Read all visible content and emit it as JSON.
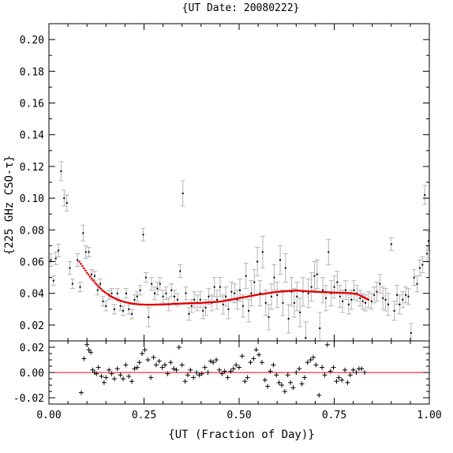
{
  "chart_data": [
    {
      "type": "scatter",
      "title": "{UT Date: 20080222}",
      "xlabel": "{UT (Fraction of Day)}",
      "ylabel": "{225 GHz CSO-τ}",
      "xlim": [
        0.0,
        1.0
      ],
      "ylim": [
        0.01,
        0.21
      ],
      "xticks": [
        "0.00",
        "0.25",
        "0.50",
        "0.75",
        "1.00"
      ],
      "yticks": [
        "0.02",
        "0.04",
        "0.06",
        "0.08",
        "0.10",
        "0.12",
        "0.14",
        "0.16",
        "0.18",
        "0.20"
      ],
      "grid": false,
      "series": [
        {
          "kind": "measurements",
          "color": "#000000",
          "errorbar_color": "#b4b4b4",
          "points": [
            [
              0.005,
              0.061,
              0.004
            ],
            [
              0.012,
              0.048,
              0.003
            ],
            [
              0.018,
              0.062,
              0.004
            ],
            [
              0.025,
              0.067,
              0.004
            ],
            [
              0.032,
              0.117,
              0.006
            ],
            [
              0.04,
              0.1,
              0.005
            ],
            [
              0.047,
              0.097,
              0.005
            ],
            [
              0.055,
              0.056,
              0.004
            ],
            [
              0.062,
              0.046,
              0.003
            ],
            [
              0.075,
              0.061,
              0.004
            ],
            [
              0.082,
              0.044,
              0.003
            ],
            [
              0.09,
              0.078,
              0.005
            ],
            [
              0.097,
              0.066,
              0.004
            ],
            [
              0.105,
              0.066,
              0.003
            ],
            [
              0.112,
              0.052,
              0.003
            ],
            [
              0.12,
              0.051,
              0.003
            ],
            [
              0.128,
              0.042,
              0.003
            ],
            [
              0.135,
              0.046,
              0.003
            ],
            [
              0.142,
              0.035,
              0.003
            ],
            [
              0.15,
              0.032,
              0.003
            ],
            [
              0.158,
              0.039,
              0.003
            ],
            [
              0.165,
              0.04,
              0.003
            ],
            [
              0.172,
              0.03,
              0.003
            ],
            [
              0.18,
              0.04,
              0.003
            ],
            [
              0.188,
              0.032,
              0.003
            ],
            [
              0.195,
              0.029,
              0.003
            ],
            [
              0.203,
              0.04,
              0.003
            ],
            [
              0.21,
              0.03,
              0.003
            ],
            [
              0.218,
              0.027,
              0.003
            ],
            [
              0.225,
              0.036,
              0.003
            ],
            [
              0.232,
              0.038,
              0.003
            ],
            [
              0.24,
              0.042,
              0.003
            ],
            [
              0.248,
              0.077,
              0.004
            ],
            [
              0.255,
              0.05,
              0.003
            ],
            [
              0.262,
              0.025,
              0.006
            ],
            [
              0.27,
              0.046,
              0.004
            ],
            [
              0.278,
              0.04,
              0.004
            ],
            [
              0.285,
              0.043,
              0.004
            ],
            [
              0.292,
              0.046,
              0.004
            ],
            [
              0.3,
              0.038,
              0.004
            ],
            [
              0.308,
              0.04,
              0.004
            ],
            [
              0.315,
              0.033,
              0.004
            ],
            [
              0.322,
              0.042,
              0.004
            ],
            [
              0.33,
              0.038,
              0.004
            ],
            [
              0.338,
              0.036,
              0.004
            ],
            [
              0.345,
              0.054,
              0.004
            ],
            [
              0.352,
              0.103,
              0.008
            ],
            [
              0.36,
              0.04,
              0.004
            ],
            [
              0.368,
              0.027,
              0.004
            ],
            [
              0.375,
              0.032,
              0.004
            ],
            [
              0.382,
              0.036,
              0.005
            ],
            [
              0.39,
              0.034,
              0.005
            ],
            [
              0.398,
              0.036,
              0.005
            ],
            [
              0.405,
              0.029,
              0.005
            ],
            [
              0.412,
              0.031,
              0.005
            ],
            [
              0.42,
              0.038,
              0.005
            ],
            [
              0.428,
              0.034,
              0.005
            ],
            [
              0.435,
              0.044,
              0.006
            ],
            [
              0.442,
              0.036,
              0.006
            ],
            [
              0.45,
              0.044,
              0.006
            ],
            [
              0.458,
              0.033,
              0.006
            ],
            [
              0.465,
              0.038,
              0.006
            ],
            [
              0.472,
              0.03,
              0.006
            ],
            [
              0.48,
              0.041,
              0.006
            ],
            [
              0.488,
              0.04,
              0.006
            ],
            [
              0.495,
              0.036,
              0.006
            ],
            [
              0.502,
              0.042,
              0.007
            ],
            [
              0.51,
              0.032,
              0.007
            ],
            [
              0.518,
              0.051,
              0.008
            ],
            [
              0.525,
              0.029,
              0.007
            ],
            [
              0.532,
              0.04,
              0.008
            ],
            [
              0.54,
              0.047,
              0.008
            ],
            [
              0.548,
              0.06,
              0.009
            ],
            [
              0.555,
              0.04,
              0.008
            ],
            [
              0.562,
              0.066,
              0.01
            ],
            [
              0.57,
              0.034,
              0.008
            ],
            [
              0.578,
              0.025,
              0.008
            ],
            [
              0.585,
              0.038,
              0.008
            ],
            [
              0.592,
              0.05,
              0.008
            ],
            [
              0.6,
              0.039,
              0.008
            ],
            [
              0.608,
              0.061,
              0.009
            ],
            [
              0.615,
              0.034,
              0.008
            ],
            [
              0.622,
              0.056,
              0.009
            ],
            [
              0.63,
              0.024,
              0.009
            ],
            [
              0.638,
              0.041,
              0.009
            ],
            [
              0.645,
              0.034,
              0.009
            ],
            [
              0.652,
              0.038,
              0.009
            ],
            [
              0.66,
              0.028,
              0.009
            ],
            [
              0.668,
              0.041,
              0.009
            ],
            [
              0.675,
              0.012,
              0.01
            ],
            [
              0.682,
              0.04,
              0.009
            ],
            [
              0.69,
              0.044,
              0.009
            ],
            [
              0.698,
              0.051,
              0.009
            ],
            [
              0.705,
              0.052,
              0.009
            ],
            [
              0.712,
              0.018,
              0.01
            ],
            [
              0.72,
              0.042,
              0.008
            ],
            [
              0.728,
              0.037,
              0.008
            ],
            [
              0.735,
              0.066,
              0.008
            ],
            [
              0.742,
              0.04,
              0.008
            ],
            [
              0.75,
              0.044,
              0.007
            ],
            [
              0.758,
              0.047,
              0.007
            ],
            [
              0.765,
              0.038,
              0.007
            ],
            [
              0.772,
              0.035,
              0.007
            ],
            [
              0.78,
              0.042,
              0.006
            ],
            [
              0.788,
              0.033,
              0.006
            ],
            [
              0.795,
              0.036,
              0.006
            ],
            [
              0.802,
              0.042,
              0.006
            ],
            [
              0.81,
              0.04,
              0.005
            ],
            [
              0.818,
              0.037,
              0.005
            ],
            [
              0.825,
              0.035,
              0.005
            ],
            [
              0.832,
              0.034,
              0.005
            ],
            [
              0.84,
              0.036,
              0.005
            ],
            [
              0.848,
              0.035,
              0.005
            ],
            [
              0.855,
              0.039,
              0.005
            ],
            [
              0.862,
              0.041,
              0.006
            ],
            [
              0.87,
              0.046,
              0.006
            ],
            [
              0.878,
              0.037,
              0.007
            ],
            [
              0.885,
              0.036,
              0.007
            ],
            [
              0.892,
              0.033,
              0.007
            ],
            [
              0.9,
              0.071,
              0.004
            ],
            [
              0.908,
              0.029,
              0.006
            ],
            [
              0.915,
              0.039,
              0.006
            ],
            [
              0.922,
              0.033,
              0.006
            ],
            [
              0.93,
              0.036,
              0.005
            ],
            [
              0.938,
              0.039,
              0.005
            ],
            [
              0.945,
              0.038,
              0.005
            ],
            [
              0.952,
              0.015,
              0.006
            ],
            [
              0.96,
              0.05,
              0.005
            ],
            [
              0.968,
              0.046,
              0.005
            ],
            [
              0.975,
              0.056,
              0.005
            ],
            [
              0.982,
              0.058,
              0.005
            ],
            [
              0.988,
              0.102,
              0.006
            ],
            [
              0.994,
              0.065,
              0.005
            ],
            [
              0.998,
              0.073,
              0.006
            ]
          ]
        },
        {
          "kind": "fit",
          "color": "#e00000",
          "x": [
            0.08,
            0.1,
            0.12,
            0.14,
            0.16,
            0.18,
            0.2,
            0.22,
            0.24,
            0.26,
            0.3,
            0.35,
            0.4,
            0.45,
            0.5,
            0.55,
            0.6,
            0.65,
            0.7,
            0.75,
            0.79,
            0.81,
            0.82,
            0.83,
            0.84
          ],
          "y": [
            0.06,
            0.053,
            0.047,
            0.042,
            0.0385,
            0.036,
            0.0345,
            0.0335,
            0.033,
            0.0328,
            0.033,
            0.0336,
            0.034,
            0.0348,
            0.037,
            0.0392,
            0.041,
            0.0418,
            0.041,
            0.0405,
            0.0402,
            0.0395,
            0.0385,
            0.0372,
            0.036
          ]
        }
      ]
    },
    {
      "type": "scatter",
      "panel": "residuals",
      "xlim": [
        0.0,
        1.0
      ],
      "ylim": [
        -0.025,
        0.025
      ],
      "xticks": [
        "0.00",
        "0.25",
        "0.50",
        "0.75",
        "1.00"
      ],
      "yticks": [
        "-0.02",
        "0.00",
        "0.02"
      ],
      "zero_line_color": "#e00000",
      "marker": "+",
      "points": [
        [
          0.085,
          -0.016
        ],
        [
          0.092,
          0.011
        ],
        [
          0.1,
          0.022
        ],
        [
          0.105,
          0.018
        ],
        [
          0.11,
          0.016
        ],
        [
          0.115,
          0.002
        ],
        [
          0.12,
          0.0
        ],
        [
          0.125,
          -0.001
        ],
        [
          0.13,
          0.004
        ],
        [
          0.138,
          -0.003
        ],
        [
          0.145,
          -0.008
        ],
        [
          0.15,
          -0.004
        ],
        [
          0.158,
          0.002
        ],
        [
          0.165,
          -0.001
        ],
        [
          0.172,
          -0.005
        ],
        [
          0.18,
          0.003
        ],
        [
          0.188,
          -0.002
        ],
        [
          0.195,
          -0.005
        ],
        [
          0.202,
          0.006
        ],
        [
          0.21,
          -0.003
        ],
        [
          0.218,
          -0.007
        ],
        [
          0.225,
          0.003
        ],
        [
          0.232,
          0.004
        ],
        [
          0.238,
          0.008
        ],
        [
          0.245,
          0.015
        ],
        [
          0.252,
          0.018
        ],
        [
          0.26,
          0.01
        ],
        [
          0.268,
          -0.004
        ],
        [
          0.275,
          0.012
        ],
        [
          0.282,
          0.006
        ],
        [
          0.29,
          0.009
        ],
        [
          0.298,
          0.004
        ],
        [
          0.305,
          0.006
        ],
        [
          0.312,
          -0.001
        ],
        [
          0.32,
          0.008
        ],
        [
          0.328,
          0.003
        ],
        [
          0.335,
          0.002
        ],
        [
          0.342,
          0.02
        ],
        [
          0.35,
          0.006
        ],
        [
          0.358,
          -0.007
        ],
        [
          0.365,
          -0.002
        ],
        [
          0.372,
          0.002
        ],
        [
          0.38,
          -0.004
        ],
        [
          0.388,
          0.0
        ],
        [
          0.395,
          -0.002
        ],
        [
          0.402,
          -0.001
        ],
        [
          0.41,
          0.004
        ],
        [
          0.418,
          0.0
        ],
        [
          0.425,
          0.009
        ],
        [
          0.432,
          0.008
        ],
        [
          0.44,
          0.01
        ],
        [
          0.448,
          0.002
        ],
        [
          0.455,
          -0.001
        ],
        [
          0.462,
          0.001
        ],
        [
          0.47,
          -0.004
        ],
        [
          0.478,
          0.001
        ],
        [
          0.485,
          0.003
        ],
        [
          0.492,
          0.006
        ],
        [
          0.5,
          0.004
        ],
        [
          0.508,
          0.013
        ],
        [
          0.515,
          -0.007
        ],
        [
          0.522,
          -0.004
        ],
        [
          0.53,
          0.008
        ],
        [
          0.538,
          0.011
        ],
        [
          0.545,
          0.018
        ],
        [
          0.552,
          0.014
        ],
        [
          0.56,
          0.008
        ],
        [
          0.568,
          -0.006
        ],
        [
          0.575,
          -0.011
        ],
        [
          0.582,
          0.001
        ],
        [
          0.59,
          0.006
        ],
        [
          0.598,
          -0.002
        ],
        [
          0.605,
          -0.008
        ],
        [
          0.612,
          -0.01
        ],
        [
          0.62,
          -0.015
        ],
        [
          0.628,
          -0.002
        ],
        [
          0.635,
          -0.008
        ],
        [
          0.642,
          -0.012
        ],
        [
          0.65,
          0.0
        ],
        [
          0.658,
          0.003
        ],
        [
          0.665,
          -0.009
        ],
        [
          0.672,
          -0.004
        ],
        [
          0.68,
          0.008
        ],
        [
          0.688,
          0.01
        ],
        [
          0.695,
          0.012
        ],
        [
          0.702,
          0.006
        ],
        [
          0.71,
          -0.018
        ],
        [
          0.718,
          0.004
        ],
        [
          0.725,
          -0.002
        ],
        [
          0.732,
          0.022
        ],
        [
          0.74,
          0.001
        ],
        [
          0.748,
          0.004
        ],
        [
          0.756,
          -0.007
        ],
        [
          0.762,
          -0.004
        ],
        [
          0.77,
          -0.006
        ],
        [
          0.778,
          0.002
        ],
        [
          0.785,
          -0.008
        ],
        [
          0.792,
          -0.002
        ],
        [
          0.8,
          0.002
        ],
        [
          0.808,
          0.0
        ],
        [
          0.815,
          0.003
        ],
        [
          0.822,
          0.003
        ],
        [
          0.83,
          0.0
        ]
      ]
    }
  ]
}
